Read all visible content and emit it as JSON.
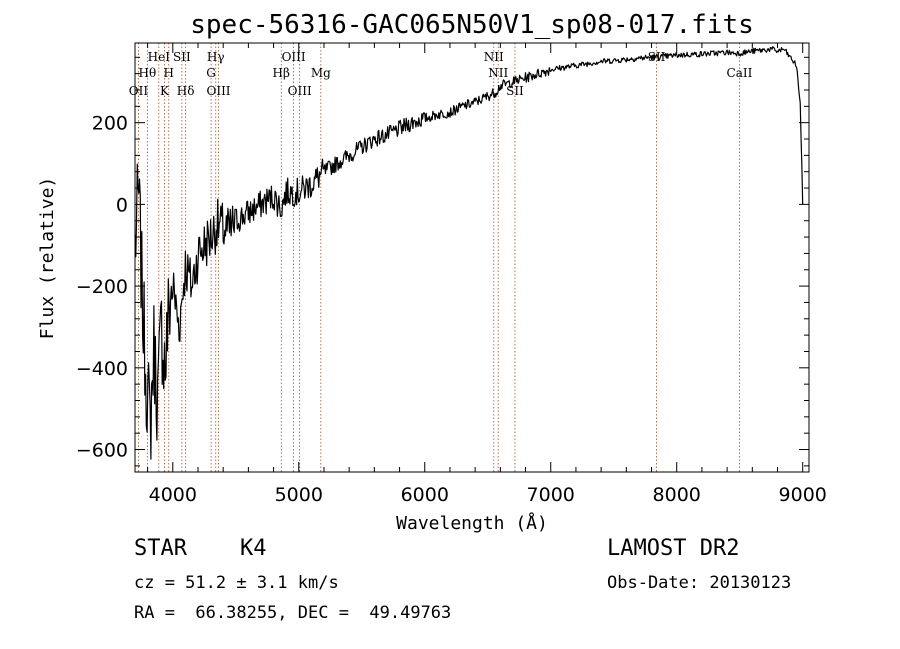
{
  "chart_data": {
    "type": "line",
    "title": "spec-56316-GAC065N50V1_sp08-017.fits",
    "xlabel": "Wavelength (Å)",
    "ylabel": "Flux (relative)",
    "xlim": [
      3700,
      9050
    ],
    "ylim": [
      -655,
      395
    ],
    "xticks": [
      4000,
      5000,
      6000,
      7000,
      8000,
      9000
    ],
    "yticks": [
      -600,
      -400,
      -200,
      0,
      200
    ],
    "grid": false,
    "series": [
      {
        "x": [
          3700,
          3730,
          3760,
          3790,
          3820,
          3850,
          3880,
          3910,
          3940,
          3970,
          4000,
          4050,
          4100,
          4150,
          4200,
          4250,
          4300,
          4350,
          4400,
          4450,
          4500,
          4600,
          4700,
          4800,
          4860,
          4900,
          5000,
          5100,
          5200,
          5300,
          5400,
          5500,
          5600,
          5700,
          5800,
          5900,
          6000,
          6100,
          6200,
          6300,
          6400,
          6500,
          6563,
          6600,
          6700,
          6800,
          6900,
          7000,
          7100,
          7200,
          7300,
          7400,
          7500,
          7600,
          7700,
          7800,
          7900,
          8000,
          8100,
          8200,
          8300,
          8400,
          8500,
          8600,
          8700,
          8750,
          8800,
          8850,
          8900,
          8950,
          8980,
          9000
        ],
        "y": [
          -100,
          20,
          -250,
          -420,
          -550,
          -350,
          -480,
          -300,
          -400,
          -250,
          -200,
          -300,
          -150,
          -200,
          -120,
          -100,
          -80,
          -50,
          -60,
          -70,
          -40,
          -20,
          0,
          20,
          -10,
          30,
          30,
          50,
          80,
          100,
          120,
          140,
          160,
          170,
          185,
          200,
          210,
          220,
          225,
          240,
          250,
          265,
          275,
          290,
          300,
          310,
          320,
          330,
          335,
          340,
          345,
          350,
          352,
          355,
          358,
          360,
          362,
          365,
          367,
          368,
          370,
          372,
          370,
          375,
          378,
          380,
          375,
          380,
          360,
          340,
          250,
          0
        ]
      }
    ],
    "spectral_lines": [
      {
        "label": "OII",
        "wavelength": 3727,
        "row": 3
      },
      {
        "label": "Hθ",
        "wavelength": 3798,
        "row": 2
      },
      {
        "label": "HeI",
        "wavelength": 3889,
        "row": 1
      },
      {
        "label": "K",
        "wavelength": 3934,
        "row": 3
      },
      {
        "label": "H",
        "wavelength": 3968,
        "row": 2
      },
      {
        "label": "SII",
        "wavelength": 4072,
        "row": 1
      },
      {
        "label": "Hδ",
        "wavelength": 4102,
        "row": 3
      },
      {
        "label": "G",
        "wavelength": 4304,
        "row": 2
      },
      {
        "label": "Hγ",
        "wavelength": 4341,
        "row": 1
      },
      {
        "label": "OIII",
        "wavelength": 4363,
        "row": 3
      },
      {
        "label": "Hβ",
        "wavelength": 4861,
        "row": 2
      },
      {
        "label": "OIII",
        "wavelength": 4959,
        "row": 1
      },
      {
        "label": "OIII",
        "wavelength": 5007,
        "row": 3
      },
      {
        "label": "Mg",
        "wavelength": 5175,
        "row": 2
      },
      {
        "label": "NII",
        "wavelength": 6548,
        "row": 1
      },
      {
        "label": "NII",
        "wavelength": 6583,
        "row": 2
      },
      {
        "label": "SII",
        "wavelength": 6716,
        "row": 3
      },
      {
        "label": "SII",
        "wavelength": 7840,
        "row": 1
      },
      {
        "label": "CaII",
        "wavelength": 8498,
        "row": 2
      }
    ]
  },
  "footer": {
    "class_line": "STAR    K4",
    "survey": "LAMOST DR2",
    "cz_line": "cz = 51.2 ± 3.1 km/s",
    "obs_date_line": "Obs-Date: 20130123",
    "radec_line": "RA =  66.38255, DEC =  49.49763"
  }
}
